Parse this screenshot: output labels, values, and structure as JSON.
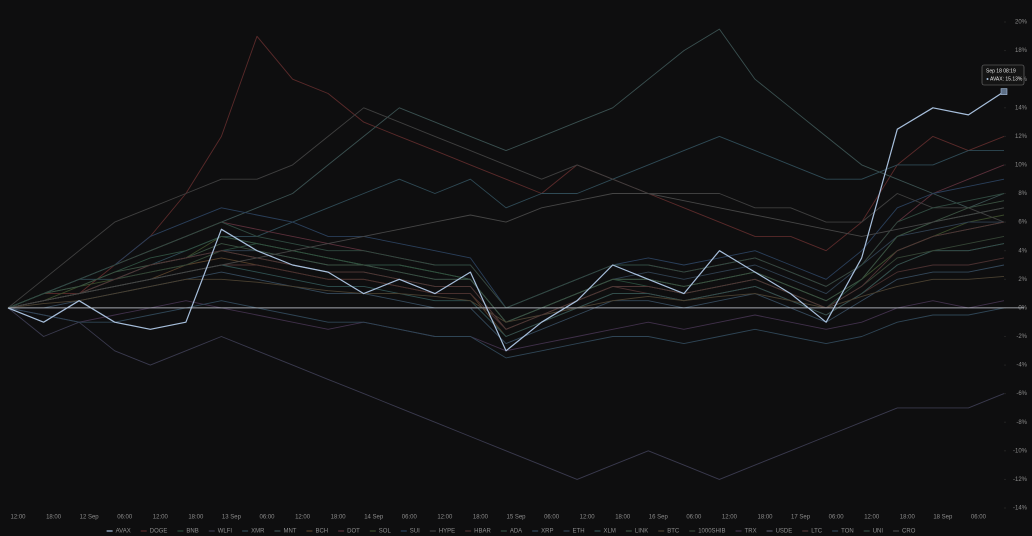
{
  "chart_data": {
    "type": "line",
    "categories": [
      "12:00",
      "18:00",
      "12 Sep",
      "06:00",
      "12:00",
      "18:00",
      "13 Sep",
      "06:00",
      "12:00",
      "18:00",
      "14 Sep",
      "06:00",
      "12:00",
      "18:00",
      "15 Sep",
      "06:00",
      "12:00",
      "18:00",
      "16 Sep",
      "06:00",
      "12:00",
      "18:00",
      "17 Sep",
      "06:00",
      "12:00",
      "18:00",
      "18 Sep",
      "06:00",
      null
    ],
    "ylim": [
      -14,
      20
    ],
    "yticks": [
      {
        "value": 20,
        "label": "20%"
      },
      {
        "value": 18,
        "label": "18%"
      },
      {
        "value": 16,
        "label": "16%"
      },
      {
        "value": 14,
        "label": "14%"
      },
      {
        "value": 12,
        "label": "12%"
      },
      {
        "value": 10,
        "label": "10%"
      },
      {
        "value": 8,
        "label": "8%"
      },
      {
        "value": 6,
        "label": "6%"
      },
      {
        "value": 4,
        "label": "4%"
      },
      {
        "value": 2,
        "label": "2%"
      },
      {
        "value": 0,
        "label": "0%"
      },
      {
        "value": -2,
        "label": "-2%"
      },
      {
        "value": -4,
        "label": "-4%"
      },
      {
        "value": -6,
        "label": "-6%"
      },
      {
        "value": -8,
        "label": "-8%"
      },
      {
        "value": -10,
        "label": "-10%"
      },
      {
        "value": -12,
        "label": "-12%"
      },
      {
        "value": -14,
        "label": "-14%"
      }
    ],
    "highlight": "AVAX",
    "tooltip": {
      "time": "Sep 18 08:19",
      "label": "AVAX: 15.13%"
    },
    "series": [
      {
        "name": "AVAX",
        "color": "#a7bfdc",
        "values": [
          0,
          -1,
          0.5,
          -1,
          -1.5,
          -1,
          5.5,
          4,
          3,
          2.5,
          1,
          2,
          1,
          2.5,
          -3,
          -1,
          0.5,
          3,
          2,
          1,
          4,
          2.5,
          1,
          -1,
          3.5,
          12.5,
          14,
          13.5,
          15.13
        ]
      },
      {
        "name": "DOGE",
        "color": "#5a2a2a",
        "values": [
          0,
          1,
          1,
          3,
          5,
          8,
          12,
          19,
          16,
          15,
          13,
          12,
          11,
          10,
          9,
          8,
          10,
          9,
          8,
          7,
          6,
          5,
          5,
          4,
          6,
          10,
          12,
          11,
          12
        ]
      },
      {
        "name": "BNB",
        "color": "#2a4a3a",
        "values": [
          0,
          0.5,
          1,
          2,
          2.5,
          3,
          4,
          4.5,
          4,
          3.5,
          3,
          3,
          2.5,
          2,
          -1,
          0,
          1,
          2,
          1.5,
          1,
          1.5,
          2,
          1,
          0,
          2,
          4,
          5,
          5.5,
          6
        ]
      },
      {
        "name": "WLFI",
        "color": "#3a3a4e",
        "values": [
          0,
          -2,
          -1,
          -3,
          -4,
          -3,
          -2,
          -3,
          -4,
          -5,
          -6,
          -7,
          -8,
          -9,
          -10,
          -11,
          -12,
          -11,
          -10,
          -11,
          -12,
          -11,
          -10,
          -9,
          -8,
          -7,
          -7,
          -7,
          -6
        ]
      },
      {
        "name": "XMR",
        "color": "#2f4a55",
        "values": [
          0,
          1,
          2,
          2,
          3,
          4,
          5,
          5,
          6,
          7,
          8,
          9,
          8,
          9,
          7,
          8,
          8,
          9,
          10,
          11,
          12,
          11,
          10,
          9,
          9,
          10,
          10,
          11,
          11
        ]
      },
      {
        "name": "MNT",
        "color": "#3a5050",
        "values": [
          0,
          1,
          2,
          3,
          4,
          5,
          6,
          7,
          8,
          10,
          12,
          14,
          13,
          12,
          11,
          12,
          13,
          14,
          16,
          18,
          19.5,
          16,
          14,
          12,
          10,
          9,
          8,
          7,
          8
        ]
      },
      {
        "name": "BCH",
        "color": "#55402a",
        "values": [
          0,
          0.5,
          1,
          1.5,
          2,
          3,
          3.5,
          3,
          2.5,
          2,
          2,
          1.5,
          1,
          1,
          -2,
          -1,
          0,
          1,
          1,
          0.5,
          1,
          1.5,
          0.5,
          -0.5,
          1,
          3,
          4,
          4,
          4.5
        ]
      },
      {
        "name": "DOT",
        "color": "#5a2f3a",
        "values": [
          0,
          1,
          2,
          3,
          4,
          5,
          6,
          5.5,
          5,
          4.5,
          4,
          3.5,
          3,
          3,
          0,
          1,
          2,
          3,
          3,
          2.5,
          3,
          3.5,
          2.5,
          1.5,
          3,
          6,
          8,
          9,
          10
        ]
      },
      {
        "name": "SOL",
        "color": "#3a4a2a",
        "values": [
          0,
          0.5,
          1.5,
          2,
          3,
          3.5,
          5,
          4.5,
          4,
          3.5,
          3,
          3,
          2.5,
          2,
          -1,
          0,
          1,
          2,
          2,
          1.5,
          2,
          2.5,
          1.5,
          0.5,
          2,
          4,
          5,
          6,
          6.5
        ]
      },
      {
        "name": "SUI",
        "color": "#2a3f5a",
        "values": [
          0,
          1,
          2,
          3,
          5,
          6,
          7,
          6.5,
          6,
          5,
          5,
          4.5,
          4,
          3.5,
          0,
          1,
          2,
          3,
          3.5,
          3,
          3.5,
          4,
          3,
          2,
          4,
          7,
          8,
          8.5,
          9
        ]
      },
      {
        "name": "HYPE",
        "color": "#3f3f3f",
        "values": [
          0,
          2,
          4,
          6,
          7,
          8,
          9,
          9,
          10,
          12,
          14,
          13,
          12,
          11,
          10,
          9,
          10,
          9,
          8,
          8,
          8,
          7,
          7,
          6,
          6,
          8,
          7,
          7,
          6
        ]
      },
      {
        "name": "HBAR",
        "color": "#4a3030",
        "values": [
          0,
          0.5,
          1,
          1.5,
          2,
          2.5,
          3,
          3,
          2.5,
          2,
          2,
          1.5,
          1,
          1,
          -1.5,
          -0.5,
          0.5,
          1.5,
          1,
          0.5,
          1,
          1.5,
          0.5,
          -0.5,
          1,
          2.5,
          3,
          3,
          3.5
        ]
      },
      {
        "name": "ADA",
        "color": "#2f4f40",
        "values": [
          0,
          1,
          1.5,
          2.5,
          3.5,
          4,
          5,
          4.5,
          4,
          3.5,
          3,
          3,
          2.5,
          2,
          -1,
          0,
          1,
          2,
          2,
          1.5,
          2,
          2.5,
          1.5,
          0.5,
          2,
          5,
          6,
          6.5,
          7
        ]
      },
      {
        "name": "XRP",
        "color": "#34485a",
        "values": [
          0,
          0,
          0.5,
          1,
          1.5,
          2,
          2.5,
          2,
          1.5,
          1,
          1,
          0.5,
          0,
          0,
          -2.5,
          -1.5,
          -0.5,
          0.5,
          0.5,
          0,
          0.5,
          1,
          0,
          -1,
          0.5,
          2,
          2.5,
          2.5,
          3
        ]
      },
      {
        "name": "ETH",
        "color": "#304050",
        "values": [
          0,
          0.5,
          1,
          2,
          3,
          3.5,
          4,
          4,
          3.5,
          3,
          3,
          2.5,
          2,
          2,
          -1,
          0,
          1,
          2,
          2.5,
          2,
          2.5,
          3,
          2,
          1,
          3,
          5,
          5.5,
          6,
          6
        ]
      },
      {
        "name": "XLM",
        "color": "#2f5050",
        "values": [
          0,
          0.5,
          1,
          1.5,
          2,
          2.5,
          3,
          2.5,
          2,
          1.5,
          1.5,
          1,
          0.5,
          0.5,
          -2,
          -1,
          0,
          1,
          1,
          0.5,
          1,
          1.5,
          0.5,
          -0.5,
          1,
          3,
          4,
          4,
          4.5
        ]
      },
      {
        "name": "LINK",
        "color": "#3a5040",
        "values": [
          0,
          1,
          1.5,
          2.5,
          3,
          3.5,
          4.5,
          4,
          3.5,
          3,
          3,
          2.5,
          2,
          2,
          -1,
          0,
          1,
          2,
          2,
          1.5,
          2,
          2.5,
          1.5,
          0.5,
          2,
          5,
          6,
          7,
          7.5
        ]
      },
      {
        "name": "BTC",
        "color": "#4a4030",
        "values": [
          0,
          0.3,
          0.5,
          1,
          1.5,
          2,
          2,
          1.8,
          1.5,
          1.2,
          1,
          1,
          0.8,
          0.5,
          -1,
          -0.5,
          0,
          0.5,
          0.8,
          0.5,
          0.8,
          1,
          0.5,
          0,
          0.8,
          1.5,
          2,
          2,
          2.2
        ]
      },
      {
        "name": "1000SHIB",
        "color": "#354535",
        "values": [
          0,
          0.5,
          1,
          2,
          2.5,
          3,
          4,
          3.5,
          3,
          2.5,
          2.5,
          2,
          1.5,
          1.5,
          -1.5,
          -0.5,
          0.5,
          1.5,
          1.5,
          1,
          1.5,
          2,
          1,
          0,
          1.5,
          3.5,
          4,
          4.5,
          5
        ]
      },
      {
        "name": "TRX",
        "color": "#40304a",
        "values": [
          0,
          -0.5,
          -1,
          -0.5,
          0,
          0.5,
          0,
          -0.5,
          -1,
          -1.5,
          -1,
          -1.5,
          -2,
          -2,
          -3,
          -2.5,
          -2,
          -1.5,
          -1,
          -1.5,
          -1,
          -0.5,
          -1,
          -1.5,
          -1,
          0,
          0.5,
          0,
          0.5
        ]
      },
      {
        "name": "USDE",
        "color": "#3a3a50",
        "values": [
          0,
          0,
          0,
          0,
          0,
          0,
          0,
          0,
          0,
          0,
          0,
          0,
          0,
          0,
          0,
          0,
          0,
          0,
          0,
          0,
          0,
          0,
          0,
          0,
          0,
          0,
          0,
          0,
          0
        ]
      },
      {
        "name": "LTC",
        "color": "#503535",
        "values": [
          0,
          0.5,
          1,
          2,
          3,
          3.5,
          4,
          3.5,
          3,
          2.5,
          2.5,
          2,
          1.5,
          1.5,
          -1.5,
          -0.5,
          0.5,
          1.5,
          1.5,
          1,
          1.5,
          2,
          1,
          0,
          1.5,
          4,
          5,
          5.5,
          6
        ]
      },
      {
        "name": "TON",
        "color": "#2f4555",
        "values": [
          0,
          -0.5,
          -1,
          -1,
          -0.5,
          0,
          0.5,
          0,
          -0.5,
          -1,
          -1,
          -1.5,
          -2,
          -2,
          -3.5,
          -3,
          -2.5,
          -2,
          -2,
          -2.5,
          -2,
          -1.5,
          -2,
          -2.5,
          -2,
          -1,
          -0.5,
          -0.5,
          0
        ]
      },
      {
        "name": "UNI",
        "color": "#304a40",
        "values": [
          0,
          1,
          2,
          3,
          4,
          5,
          6,
          5,
          4.5,
          4,
          4,
          3.5,
          3,
          3,
          0,
          1,
          2,
          3,
          3,
          2.5,
          3,
          3.5,
          2.5,
          1.5,
          3,
          6,
          7,
          7.5,
          8
        ]
      },
      {
        "name": "CRO",
        "color": "#454545",
        "values": [
          0,
          0.5,
          1,
          1.5,
          2,
          2.5,
          3,
          3.5,
          4,
          4.5,
          5,
          5.5,
          6,
          6.5,
          6,
          7,
          7.5,
          8,
          8,
          7.5,
          7,
          6.5,
          6,
          5.5,
          5,
          5.5,
          6,
          6.5,
          7
        ]
      }
    ]
  }
}
